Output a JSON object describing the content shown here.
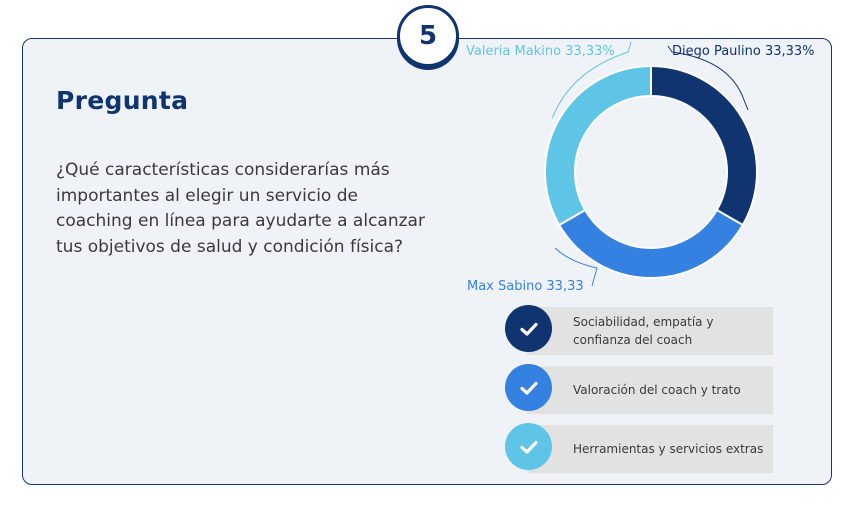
{
  "badge": {
    "number": "5"
  },
  "title": "Pregunta",
  "question": "¿Qué características considerarías más importantes al elegir un servicio de coaching en línea para ayudarte a alcanzar tus objetivos de salud y condición física?",
  "chart_data": {
    "type": "pie",
    "donut": true,
    "slices": [
      {
        "name": "Diego Paulino",
        "value": 33.33,
        "label": "Diego Paulino 33,33%",
        "color": "#0f3470"
      },
      {
        "name": "Max Sabino",
        "value": 33.33,
        "label": "Max Sabino 33,33",
        "color": "#3581e2"
      },
      {
        "name": "Valeria Makino",
        "value": 33.33,
        "label": "Valeria Makino 33,33%",
        "color": "#5ec5e7"
      }
    ]
  },
  "options": [
    {
      "text": "Sociabilidad, empatía y confianza del coach",
      "color": "#0f3470",
      "icon": "check-icon"
    },
    {
      "text": "Valoración del coach y trato",
      "color": "#3581e2",
      "icon": "check-icon"
    },
    {
      "text": "Herramientas y servicios extras",
      "color": "#5ec5e7",
      "icon": "check-icon"
    }
  ]
}
